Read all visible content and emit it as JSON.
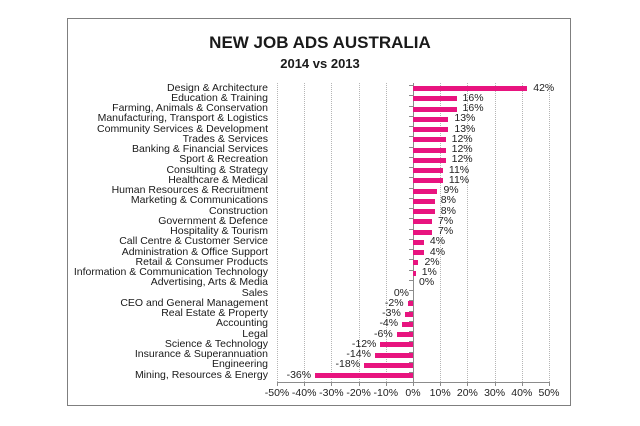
{
  "chart_data": {
    "type": "bar",
    "orientation": "horizontal",
    "title": "NEW JOB ADS AUSTRALIA",
    "subtitle": "2014 vs 2013",
    "xlabel": "",
    "ylabel": "",
    "xlim": [
      -50,
      50
    ],
    "x_ticks": [
      "-50%",
      "-40%",
      "-30%",
      "-20%",
      "-10%",
      "0%",
      "10%",
      "20%",
      "30%",
      "40%",
      "50%"
    ],
    "grid": true,
    "legend": null,
    "bar_color": "#E8147F",
    "categories": [
      "Design & Architecture",
      "Education & Training",
      "Farming, Animals & Conservation",
      "Manufacturing, Transport & Logistics",
      "Community Services & Development",
      "Trades & Services",
      "Banking & Financial Services",
      "Sport & Recreation",
      "Consulting & Strategy",
      "Healthcare & Medical",
      "Human Resources & Recruitment",
      "Marketing & Communications",
      "Construction",
      "Government & Defence",
      "Hospitality & Tourism",
      "Call Centre & Customer Service",
      "Administration & Office Support",
      "Retail & Consumer Products",
      "Information & Communication Technology",
      "Advertising, Arts & Media",
      "Sales",
      "CEO and General Management",
      "Real Estate & Property",
      "Accounting",
      "Legal",
      "Science & Technology",
      "Insurance & Superannuation",
      "Engineering",
      "Mining, Resources & Energy"
    ],
    "values": [
      42,
      16,
      16,
      13,
      13,
      12,
      12,
      12,
      11,
      11,
      9,
      8,
      8,
      7,
      7,
      4,
      4,
      2,
      1,
      0,
      0,
      -2,
      -3,
      -4,
      -6,
      -12,
      -14,
      -18,
      -36
    ],
    "value_labels": [
      "42%",
      "16%",
      "16%",
      "13%",
      "13%",
      "12%",
      "12%",
      "12%",
      "11%",
      "11%",
      "9%",
      "8%",
      "8%",
      "7%",
      "7%",
      "4%",
      "4%",
      "2%",
      "1%",
      "0%",
      "0%",
      "-2%",
      "-3%",
      "-4%",
      "-6%",
      "-12%",
      "-14%",
      "-18%",
      "-36%"
    ]
  }
}
